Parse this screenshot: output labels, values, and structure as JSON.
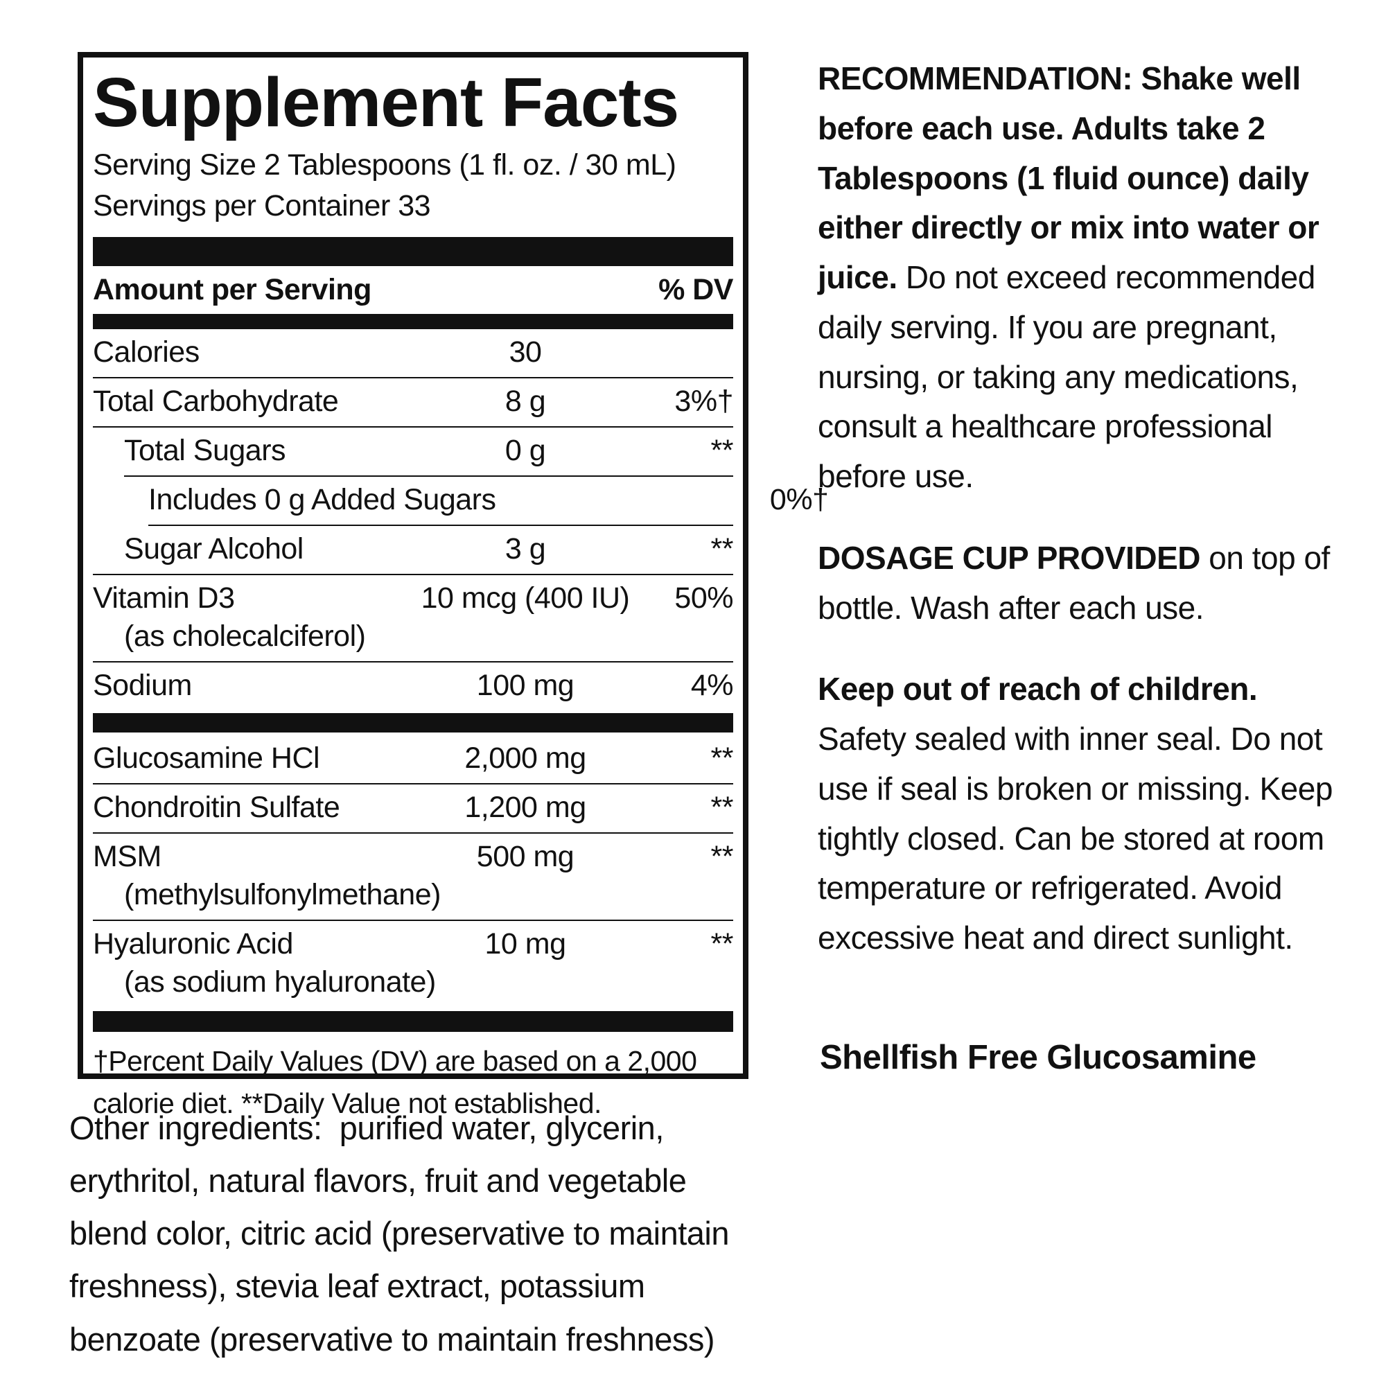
{
  "panel": {
    "title": "Supplement Facts",
    "serving_size": "Serving Size 2 Tablespoons (1 fl. oz. / 30 mL)",
    "servings_per_container": "Servings per Container 33",
    "header": {
      "amount_label": "Amount per Serving",
      "dv_label": "% DV"
    },
    "rows": [
      {
        "name": "Calories",
        "amount": "30",
        "dv": "",
        "indent": 0,
        "rule": "none"
      },
      {
        "name": "Total Carbohydrate",
        "amount": "8 g",
        "dv": "3%†",
        "indent": 0,
        "rule": "full"
      },
      {
        "name": "Total Sugars",
        "amount": "0 g",
        "dv": "**",
        "indent": 1,
        "rule": "full"
      },
      {
        "name": "Includes 0 g Added Sugars",
        "amount": "",
        "dv": "0%†",
        "indent": 2,
        "rule": "i1"
      },
      {
        "name": "Sugar Alcohol",
        "amount": "3 g",
        "dv": "**",
        "indent": 1,
        "rule": "i2"
      },
      {
        "name": "Vitamin D3",
        "subname": "(as cholecalciferol)",
        "amount": "10 mcg (400 IU)",
        "dv": "50%",
        "indent": 0,
        "rule": "full"
      },
      {
        "name": "Sodium",
        "amount": "100 mg",
        "dv": "4%",
        "indent": 0,
        "rule": "full",
        "bar_after": true
      },
      {
        "name": "Glucosamine HCl",
        "amount": "2,000 mg",
        "dv": "**",
        "indent": 0,
        "rule": "none"
      },
      {
        "name": "Chondroitin Sulfate",
        "amount": "1,200 mg",
        "dv": "**",
        "indent": 0,
        "rule": "full"
      },
      {
        "name": "MSM",
        "subname": "(methylsulfonylmethane)",
        "amount": "500 mg",
        "dv": "**",
        "indent": 0,
        "rule": "full"
      },
      {
        "name": "Hyaluronic Acid",
        "subname": "(as sodium hyaluronate)",
        "amount": "10 mg",
        "dv": "**",
        "indent": 0,
        "rule": "full"
      }
    ],
    "footnote": "†Percent Daily Values (DV) are based on a 2,000 calorie diet. **Daily Value not established."
  },
  "other_ingredients": "Other ingredients:  purified water, glycerin, erythritol, natural flavors, fruit and vegetable blend color, citric acid (preservative to maintain freshness), stevia leaf extract, potassium benzoate (preservative to maintain freshness)",
  "right_column": {
    "recommendation_bold": "RECOMMENDATION: Shake well before each use. Adults take 2 Tablespoons (1 fluid ounce) daily either directly or mix into water or juice.",
    "recommendation_regular": " Do not exceed recommended daily serving. If you are pregnant, nursing, or taking any medications, consult a healthcare professional before use.",
    "dosage_bold": "DOSAGE CUP PROVIDED",
    "dosage_regular": " on top of bottle. Wash after each use.",
    "children_bold": "Keep out of reach of children.",
    "children_regular": "Safety sealed with inner seal. Do not use if seal is broken or missing. Keep tightly closed. Can be stored at room temperature or refrigerated. Avoid excessive heat and direct sunlight.",
    "shellfish_claim": "Shellfish Free Glucosamine"
  },
  "colors": {
    "ink": "#111111",
    "background": "#ffffff"
  }
}
